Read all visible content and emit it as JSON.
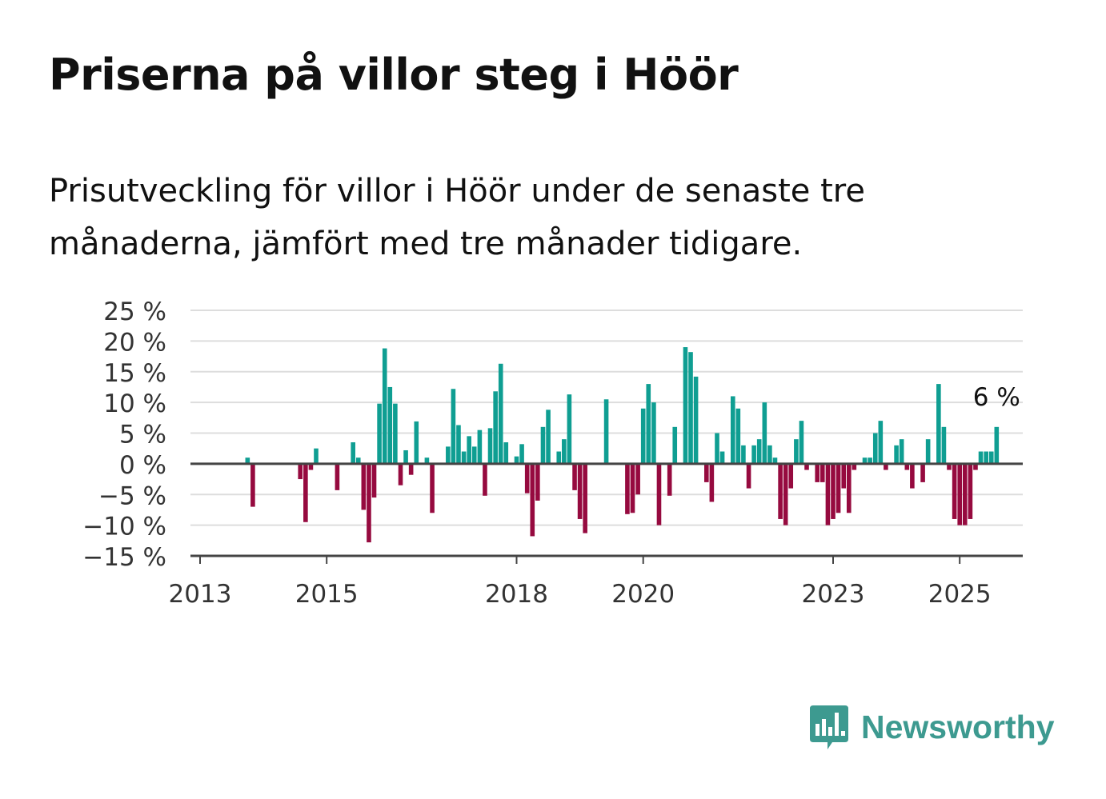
{
  "header": {
    "title": "Priserna på villor steg i Höör",
    "subtitle": "Prisutveckling för villor i Höör under de senaste tre månaderna, jämfört med tre månader tidigare."
  },
  "brand": {
    "name": "Newsworthy",
    "icon": "newsworthy-logo-icon",
    "color": "#3d9a90"
  },
  "colors": {
    "positive": "#0f9e92",
    "negative": "#960a3f",
    "grid": "#dddddd",
    "axis": "#444444"
  },
  "chart_data": {
    "type": "bar",
    "title": "Priserna på villor steg i Höör",
    "subtitle": "Prisutveckling för villor i Höör under de senaste tre månaderna, jämfört med tre månader tidigare.",
    "xlabel": "",
    "ylabel": "",
    "ylim": [
      -15,
      25
    ],
    "xlim": [
      2013,
      2026
    ],
    "grid": true,
    "y_ticks": [
      25,
      20,
      15,
      10,
      5,
      0,
      -5,
      -10,
      -15
    ],
    "y_tick_labels": [
      "25 %",
      "20 %",
      "15 %",
      "10 %",
      "5 %",
      "0 %",
      "−5 %",
      "−10 %",
      "−15 %"
    ],
    "x_ticks": [
      2013,
      2015,
      2018,
      2020,
      2023,
      2025
    ],
    "x_tick_labels": [
      "2013",
      "2015",
      "2018",
      "2020",
      "2023",
      "2025"
    ],
    "last_value_label": "6 %",
    "series": [
      {
        "values": [
          [
            2013.75,
            1
          ],
          [
            2013.833,
            -7
          ],
          [
            2014.583,
            -2.5
          ],
          [
            2014.667,
            -9.5
          ],
          [
            2014.75,
            -1
          ],
          [
            2014.833,
            2.5
          ],
          [
            2015.167,
            -4.3
          ],
          [
            2015.417,
            3.5
          ],
          [
            2015.5,
            1
          ],
          [
            2015.583,
            -7.5
          ],
          [
            2015.667,
            -12.8
          ],
          [
            2015.75,
            -5.5
          ],
          [
            2015.833,
            9.8
          ],
          [
            2015.917,
            18.8
          ],
          [
            2016.0,
            12.5
          ],
          [
            2016.083,
            9.8
          ],
          [
            2016.167,
            -3.5
          ],
          [
            2016.25,
            2.2
          ],
          [
            2016.333,
            -1.8
          ],
          [
            2016.417,
            6.9
          ],
          [
            2016.583,
            1
          ],
          [
            2016.667,
            -8
          ],
          [
            2016.917,
            2.8
          ],
          [
            2017.0,
            12.2
          ],
          [
            2017.083,
            6.3
          ],
          [
            2017.167,
            2
          ],
          [
            2017.25,
            4.5
          ],
          [
            2017.333,
            2.8
          ],
          [
            2017.417,
            5.5
          ],
          [
            2017.5,
            -5.2
          ],
          [
            2017.583,
            5.8
          ],
          [
            2017.667,
            11.8
          ],
          [
            2017.75,
            16.3
          ],
          [
            2017.833,
            3.5
          ],
          [
            2018.0,
            1.2
          ],
          [
            2018.083,
            3.2
          ],
          [
            2018.167,
            -4.8
          ],
          [
            2018.25,
            -11.8
          ],
          [
            2018.333,
            -6
          ],
          [
            2018.417,
            6
          ],
          [
            2018.5,
            8.8
          ],
          [
            2018.667,
            2
          ],
          [
            2018.75,
            4
          ],
          [
            2018.833,
            11.3
          ],
          [
            2018.917,
            -4.3
          ],
          [
            2019.0,
            -9
          ],
          [
            2019.083,
            -11.3
          ],
          [
            2019.417,
            10.5
          ],
          [
            2019.75,
            -8.2
          ],
          [
            2019.833,
            -8
          ],
          [
            2019.917,
            -5
          ],
          [
            2020.0,
            9
          ],
          [
            2020.083,
            13
          ],
          [
            2020.167,
            10
          ],
          [
            2020.25,
            -10
          ],
          [
            2020.417,
            -5.2
          ],
          [
            2020.5,
            6
          ],
          [
            2020.667,
            19
          ],
          [
            2020.75,
            18.2
          ],
          [
            2020.833,
            14.2
          ],
          [
            2021.0,
            -3
          ],
          [
            2021.083,
            -6.2
          ],
          [
            2021.167,
            5
          ],
          [
            2021.25,
            2
          ],
          [
            2021.417,
            11
          ],
          [
            2021.5,
            9
          ],
          [
            2021.583,
            3
          ],
          [
            2021.667,
            -4
          ],
          [
            2021.75,
            3
          ],
          [
            2021.833,
            4
          ],
          [
            2021.917,
            10
          ],
          [
            2022.0,
            3
          ],
          [
            2022.083,
            1
          ],
          [
            2022.167,
            -9
          ],
          [
            2022.25,
            -10
          ],
          [
            2022.333,
            -4
          ],
          [
            2022.417,
            4
          ],
          [
            2022.5,
            7
          ],
          [
            2022.583,
            -1
          ],
          [
            2022.75,
            -3
          ],
          [
            2022.833,
            -3
          ],
          [
            2022.917,
            -10
          ],
          [
            2023.0,
            -9
          ],
          [
            2023.083,
            -8
          ],
          [
            2023.167,
            -4
          ],
          [
            2023.25,
            -8
          ],
          [
            2023.333,
            -1
          ],
          [
            2023.5,
            1
          ],
          [
            2023.583,
            1
          ],
          [
            2023.667,
            5
          ],
          [
            2023.75,
            7
          ],
          [
            2023.833,
            -1
          ],
          [
            2024.0,
            3
          ],
          [
            2024.083,
            4
          ],
          [
            2024.167,
            -1
          ],
          [
            2024.25,
            -4
          ],
          [
            2024.417,
            -3
          ],
          [
            2024.5,
            4
          ],
          [
            2024.667,
            13
          ],
          [
            2024.75,
            6
          ],
          [
            2024.833,
            -1
          ],
          [
            2024.917,
            -9
          ],
          [
            2025.0,
            -10
          ],
          [
            2025.083,
            -10
          ],
          [
            2025.167,
            -9
          ],
          [
            2025.25,
            -1
          ],
          [
            2025.333,
            2
          ],
          [
            2025.417,
            2
          ],
          [
            2025.5,
            2
          ],
          [
            2025.583,
            6
          ]
        ]
      }
    ]
  }
}
